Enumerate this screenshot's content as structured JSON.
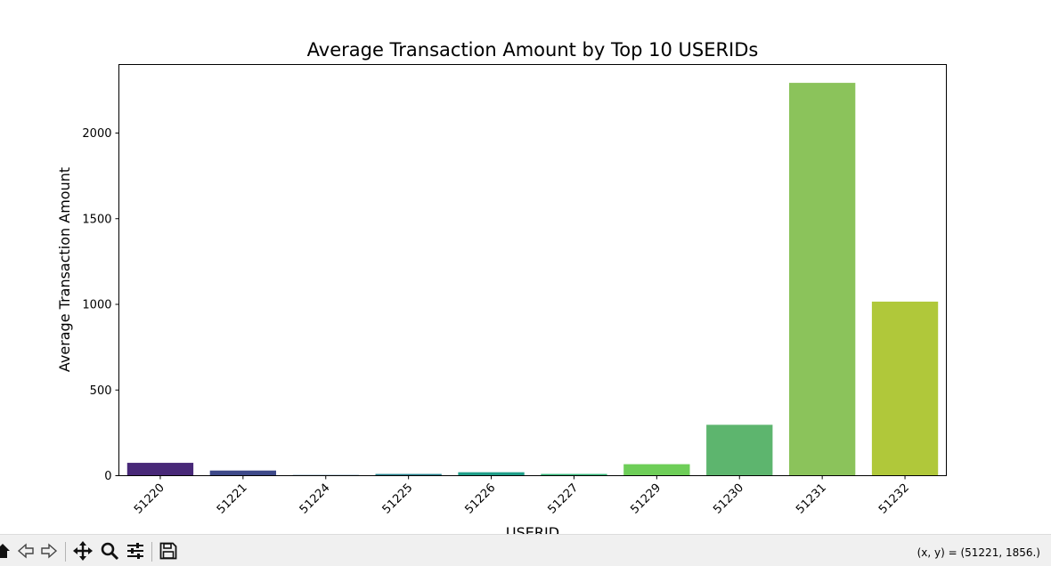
{
  "chart_data": {
    "type": "bar",
    "title": "Average Transaction Amount by Top 10 USERIDs",
    "xlabel": "USERID",
    "ylabel": "Average Transaction Amount",
    "categories": [
      "51220",
      "51221",
      "51224",
      "51225",
      "51226",
      "51227",
      "51229",
      "51230",
      "51231",
      "51232"
    ],
    "values": [
      75,
      30,
      4,
      10,
      20,
      10,
      67,
      297,
      2293,
      1016
    ],
    "colors": [
      "#482878",
      "#3e4989",
      "#31688e",
      "#26828e",
      "#1f9e89",
      "#35b779",
      "#6ece58",
      "#5db56e",
      "#8bc35b",
      "#b0c83a"
    ],
    "ylim": [
      0,
      2400
    ],
    "yticks": [
      0,
      500,
      1000,
      1500,
      2000
    ],
    "grid": false
  },
  "toolbar": {
    "home_icon": "home-icon",
    "back_icon": "back-arrow-icon",
    "forward_icon": "forward-arrow-icon",
    "pan_icon": "pan-icon",
    "zoom_icon": "zoom-icon",
    "configure_icon": "sliders-icon",
    "save_icon": "save-icon",
    "coordinates": "(x, y) = (51221, 1856.)"
  }
}
